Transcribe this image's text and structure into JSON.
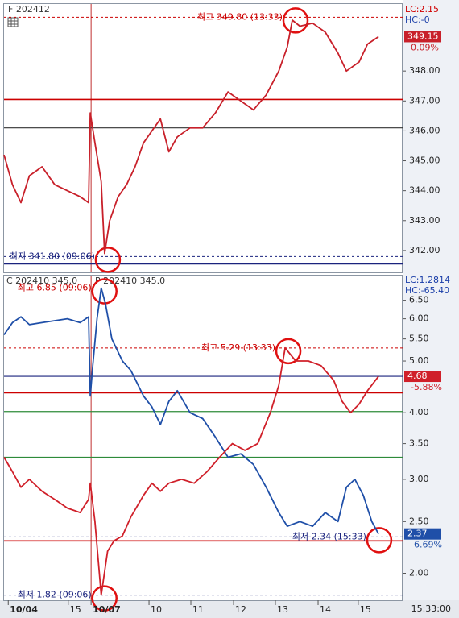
{
  "chart_data": [
    {
      "type": "line",
      "title": "F 202412",
      "lc_label": "LC:2.15",
      "hc_label": "HC:-0",
      "log": false,
      "xlim": [
        0,
        9.43
      ],
      "ylim": [
        341.27,
        350.24
      ],
      "yticks": [
        {
          "value": 342,
          "label": "342.00"
        },
        {
          "value": 343,
          "label": "343.00"
        },
        {
          "value": 344,
          "label": "344.00"
        },
        {
          "value": 345,
          "label": "345.00"
        },
        {
          "value": 346,
          "label": "346.00"
        },
        {
          "value": 347,
          "label": "347.00"
        },
        {
          "value": 348,
          "label": "348.00"
        }
      ],
      "series": [
        {
          "name": "F 202412",
          "color": "#c8202a",
          "change": "0.09%",
          "x": [
            0,
            0.2,
            0.4,
            0.6,
            0.9,
            1.2,
            1.5,
            1.8,
            2.0,
            2.04,
            2.15,
            2.3,
            2.38,
            2.5,
            2.7,
            2.9,
            3.1,
            3.3,
            3.5,
            3.7,
            3.9,
            4.1,
            4.4,
            4.7,
            5.0,
            5.3,
            5.6,
            5.9,
            6.2,
            6.5,
            6.7,
            6.82,
            7.0,
            7.3,
            7.6,
            7.9,
            8.1,
            8.4,
            8.6,
            8.86
          ],
          "values": [
            345.2,
            344.2,
            343.6,
            344.5,
            344.8,
            344.2,
            344.0,
            343.8,
            343.6,
            346.6,
            345.6,
            344.3,
            341.9,
            343.0,
            343.8,
            344.2,
            344.8,
            345.6,
            346.0,
            346.4,
            345.3,
            345.8,
            346.1,
            346.1,
            346.6,
            347.3,
            347.0,
            346.7,
            347.2,
            348.0,
            348.8,
            349.7,
            349.5,
            349.6,
            349.3,
            348.6,
            348.0,
            348.3,
            348.9,
            349.15
          ]
        }
      ],
      "reference_lines": [
        {
          "value": 347.05,
          "color": "#cc0000"
        },
        {
          "value": 346.1,
          "color": "#333333"
        },
        {
          "value": 341.55,
          "color": "#1a237e"
        }
      ],
      "annotations": [
        {
          "label": "최고 349.80 (13:33)",
          "value": 349.8,
          "x": 6.82,
          "color": "#cc0000"
        },
        {
          "label": "최저 341.80 (09:06)",
          "value": 341.8,
          "x": 2.38,
          "color": "#1a237e"
        }
      ]
    },
    {
      "type": "line",
      "lc_label": "LC:1.2814",
      "hc_label": "HC:-65.40",
      "time": "15:33:00",
      "log": true,
      "xlim": [
        0,
        9.43
      ],
      "ylim": [
        1.78,
        7.23
      ],
      "xticks": [
        {
          "value": 0.1,
          "label": "10/04"
        },
        {
          "value": 1.52,
          "label": "15"
        },
        {
          "value": 2.06,
          "label": "10/07"
        },
        {
          "value": 3.43,
          "label": "10"
        },
        {
          "value": 4.42,
          "label": "11"
        },
        {
          "value": 5.43,
          "label": "12"
        },
        {
          "value": 6.42,
          "label": "13"
        },
        {
          "value": 7.43,
          "label": "14"
        },
        {
          "value": 8.38,
          "label": "15"
        }
      ],
      "yticks": [
        {
          "value": 2,
          "label": "2.00"
        },
        {
          "value": 2.5,
          "label": "2.50"
        },
        {
          "value": 3,
          "label": "3.00"
        },
        {
          "value": 3.5,
          "label": "3.50"
        },
        {
          "value": 4,
          "label": "4.00"
        },
        {
          "value": 5,
          "label": "5.00"
        },
        {
          "value": 5.5,
          "label": "5.50"
        },
        {
          "value": 6,
          "label": "6.00"
        },
        {
          "value": 6.5,
          "label": "6.50"
        }
      ],
      "series": [
        {
          "name": "C 202410 345.0",
          "color": "#1f4fa8",
          "change": "-6.69%",
          "x": [
            0,
            0.2,
            0.4,
            0.6,
            0.9,
            1.2,
            1.5,
            1.8,
            2.0,
            2.04,
            2.1,
            2.2,
            2.3,
            2.4,
            2.55,
            2.8,
            3.0,
            3.3,
            3.5,
            3.7,
            3.9,
            4.1,
            4.4,
            4.7,
            5.0,
            5.3,
            5.6,
            5.9,
            6.2,
            6.5,
            6.7,
            7.0,
            7.3,
            7.6,
            7.9,
            8.1,
            8.3,
            8.5,
            8.7,
            8.86
          ],
          "values": [
            5.6,
            5.9,
            6.05,
            5.85,
            5.9,
            5.95,
            6.0,
            5.9,
            6.05,
            4.3,
            4.9,
            6.0,
            6.85,
            6.4,
            5.5,
            5.0,
            4.8,
            4.3,
            4.1,
            3.8,
            4.2,
            4.4,
            4.0,
            3.9,
            3.6,
            3.3,
            3.35,
            3.2,
            2.9,
            2.6,
            2.45,
            2.5,
            2.45,
            2.6,
            2.5,
            2.9,
            3.0,
            2.8,
            2.5,
            2.37
          ]
        },
        {
          "name": "P 202410 345.0",
          "color": "#d0202a",
          "change": "-5.88%",
          "x": [
            0,
            0.2,
            0.4,
            0.6,
            0.9,
            1.2,
            1.5,
            1.8,
            2.0,
            2.04,
            2.15,
            2.3,
            2.45,
            2.6,
            2.8,
            3.0,
            3.3,
            3.5,
            3.7,
            3.9,
            4.2,
            4.5,
            4.8,
            5.1,
            5.4,
            5.7,
            6.0,
            6.3,
            6.5,
            6.65,
            6.9,
            7.2,
            7.5,
            7.8,
            8.0,
            8.2,
            8.4,
            8.6,
            8.86
          ],
          "values": [
            3.3,
            3.1,
            2.9,
            3.0,
            2.85,
            2.75,
            2.65,
            2.6,
            2.75,
            2.95,
            2.5,
            1.82,
            2.2,
            2.3,
            2.35,
            2.55,
            2.8,
            2.95,
            2.85,
            2.95,
            3.0,
            2.95,
            3.1,
            3.3,
            3.5,
            3.4,
            3.5,
            4.0,
            4.5,
            5.29,
            5.0,
            5.0,
            4.9,
            4.6,
            4.2,
            4.0,
            4.15,
            4.4,
            4.68
          ]
        }
      ],
      "reference_lines": [
        {
          "value": 4.68,
          "color": "#1a237e"
        },
        {
          "value": 4.36,
          "color": "#cc0000"
        },
        {
          "value": 4.02,
          "color": "#2e8b3a"
        },
        {
          "value": 3.3,
          "color": "#2e8b3a"
        },
        {
          "value": 2.3,
          "color": "#cc0000"
        }
      ],
      "annotations": [
        {
          "label": "최고 6.85 (09:06)",
          "value": 6.85,
          "x": 2.3,
          "color": "#cc0000"
        },
        {
          "label": "최고 5.29 (13:33)",
          "value": 5.29,
          "x": 6.65,
          "color": "#cc0000"
        },
        {
          "label": "최저 2.34 (15:33)",
          "value": 2.34,
          "x": 8.8,
          "color": "#1a237e"
        },
        {
          "label": "최저 1.82 (09:06)",
          "value": 1.82,
          "x": 2.3,
          "color": "#1a237e"
        }
      ]
    }
  ]
}
